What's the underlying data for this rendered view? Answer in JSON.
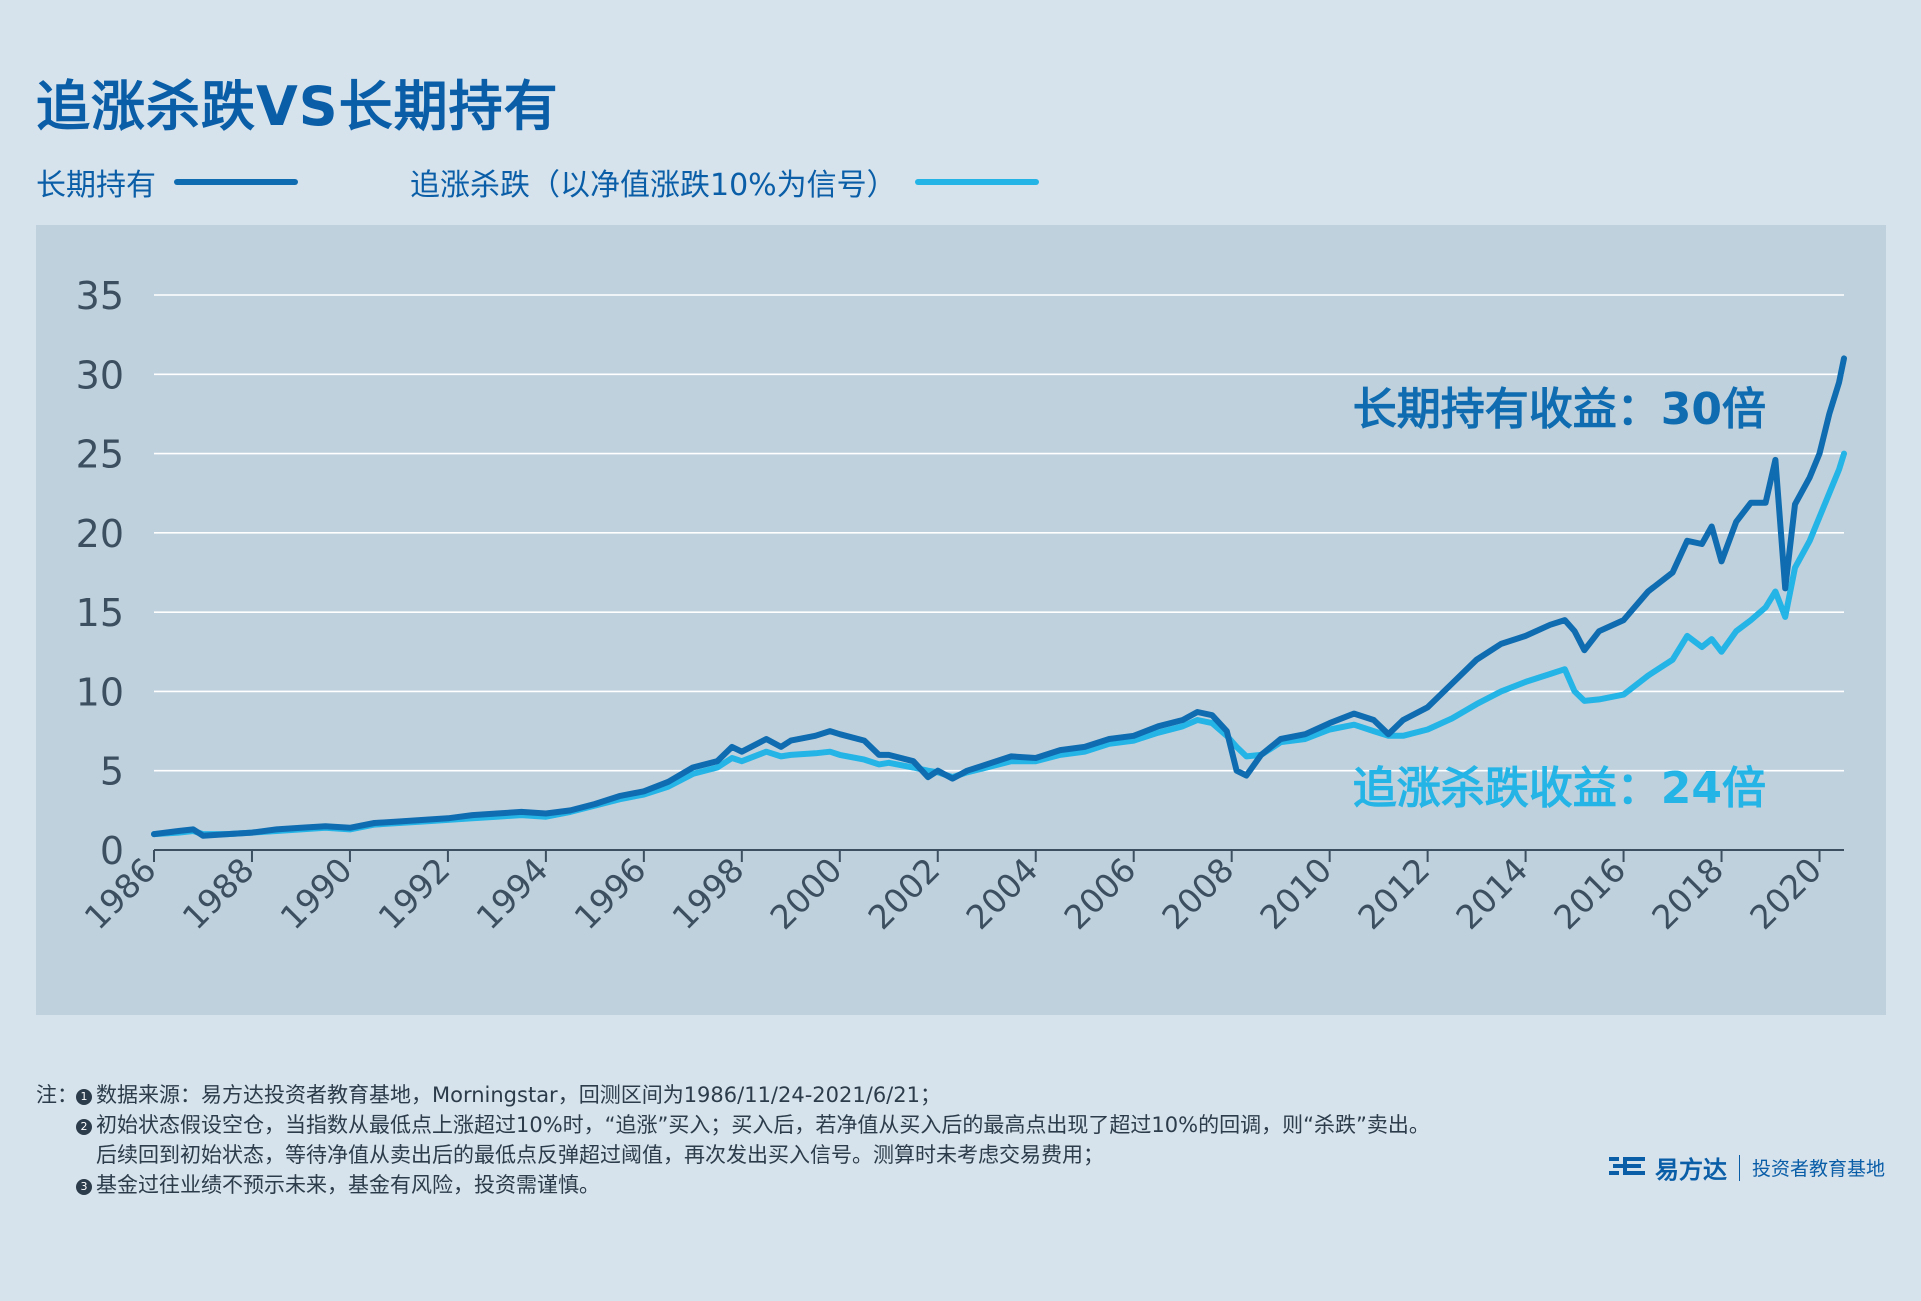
{
  "title": "追涨杀跌VS长期持有",
  "legend": {
    "hold_label": "长期持有",
    "chase_label": "追涨杀跌（以净值涨跌10%为信号）"
  },
  "colors": {
    "hold": "#0f6cb0",
    "chase": "#24b4e6",
    "title": "#0a5ea8",
    "grid": "#ffffff",
    "panel": "#bfd1dd"
  },
  "chart_data": {
    "type": "line",
    "x_ticks": [
      "1986",
      "1988",
      "1990",
      "1992",
      "1994",
      "1996",
      "1998",
      "2000",
      "2002",
      "2004",
      "2006",
      "2008",
      "2010",
      "2012",
      "2014",
      "2016",
      "2018",
      "2020"
    ],
    "y_ticks": [
      "0",
      "5",
      "10",
      "15",
      "20",
      "25",
      "30",
      "35"
    ],
    "xlim": [
      1986,
      2020.5
    ],
    "ylim": [
      0,
      35
    ],
    "grid": "horizontal",
    "series": [
      {
        "name": "长期持有",
        "color": "#0f6cb0",
        "points": [
          [
            1986.0,
            1.0
          ],
          [
            1986.5,
            1.2
          ],
          [
            1986.8,
            1.3
          ],
          [
            1987.0,
            0.9
          ],
          [
            1987.5,
            1.0
          ],
          [
            1988.0,
            1.1
          ],
          [
            1988.5,
            1.3
          ],
          [
            1989.0,
            1.4
          ],
          [
            1989.5,
            1.5
          ],
          [
            1990.0,
            1.4
          ],
          [
            1990.5,
            1.7
          ],
          [
            1991.0,
            1.8
          ],
          [
            1991.5,
            1.9
          ],
          [
            1992.0,
            2.0
          ],
          [
            1992.5,
            2.2
          ],
          [
            1993.0,
            2.3
          ],
          [
            1993.5,
            2.4
          ],
          [
            1994.0,
            2.3
          ],
          [
            1994.5,
            2.5
          ],
          [
            1995.0,
            2.9
          ],
          [
            1995.5,
            3.4
          ],
          [
            1996.0,
            3.7
          ],
          [
            1996.5,
            4.3
          ],
          [
            1997.0,
            5.2
          ],
          [
            1997.5,
            5.6
          ],
          [
            1997.8,
            6.5
          ],
          [
            1998.0,
            6.2
          ],
          [
            1998.5,
            7.0
          ],
          [
            1998.8,
            6.5
          ],
          [
            1999.0,
            6.9
          ],
          [
            1999.5,
            7.2
          ],
          [
            1999.8,
            7.5
          ],
          [
            2000.0,
            7.3
          ],
          [
            2000.5,
            6.9
          ],
          [
            2000.8,
            6.0
          ],
          [
            2001.0,
            6.0
          ],
          [
            2001.5,
            5.6
          ],
          [
            2001.8,
            4.6
          ],
          [
            2002.0,
            5.0
          ],
          [
            2002.3,
            4.5
          ],
          [
            2002.6,
            5.0
          ],
          [
            2003.0,
            5.4
          ],
          [
            2003.5,
            5.9
          ],
          [
            2004.0,
            5.8
          ],
          [
            2004.5,
            6.3
          ],
          [
            2005.0,
            6.5
          ],
          [
            2005.5,
            7.0
          ],
          [
            2006.0,
            7.2
          ],
          [
            2006.5,
            7.8
          ],
          [
            2007.0,
            8.2
          ],
          [
            2007.3,
            8.7
          ],
          [
            2007.6,
            8.5
          ],
          [
            2007.9,
            7.5
          ],
          [
            2008.1,
            5.0
          ],
          [
            2008.3,
            4.7
          ],
          [
            2008.6,
            6.0
          ],
          [
            2009.0,
            7.0
          ],
          [
            2009.5,
            7.3
          ],
          [
            2010.0,
            8.0
          ],
          [
            2010.5,
            8.6
          ],
          [
            2010.9,
            8.2
          ],
          [
            2011.2,
            7.3
          ],
          [
            2011.5,
            8.2
          ],
          [
            2012.0,
            9.0
          ],
          [
            2012.5,
            10.5
          ],
          [
            2013.0,
            12.0
          ],
          [
            2013.5,
            13.0
          ],
          [
            2014.0,
            13.5
          ],
          [
            2014.5,
            14.2
          ],
          [
            2014.8,
            14.5
          ],
          [
            2015.0,
            13.8
          ],
          [
            2015.2,
            12.6
          ],
          [
            2015.5,
            13.8
          ],
          [
            2016.0,
            14.5
          ],
          [
            2016.5,
            16.3
          ],
          [
            2017.0,
            17.5
          ],
          [
            2017.3,
            19.5
          ],
          [
            2017.6,
            19.3
          ],
          [
            2017.8,
            20.4
          ],
          [
            2018.0,
            18.2
          ],
          [
            2018.3,
            20.7
          ],
          [
            2018.6,
            21.9
          ],
          [
            2018.9,
            21.9
          ],
          [
            2019.1,
            24.6
          ],
          [
            2019.3,
            16.5
          ],
          [
            2019.5,
            21.8
          ],
          [
            2019.8,
            23.5
          ],
          [
            2020.0,
            25.0
          ],
          [
            2020.2,
            27.5
          ],
          [
            2020.4,
            29.5
          ],
          [
            2020.5,
            31.0
          ]
        ]
      },
      {
        "name": "追涨杀跌（以净值涨跌10%为信号）",
        "color": "#24b4e6",
        "points": [
          [
            1986.0,
            1.0
          ],
          [
            1986.5,
            1.1
          ],
          [
            1986.8,
            1.2
          ],
          [
            1987.0,
            1.0
          ],
          [
            1987.5,
            1.0
          ],
          [
            1988.0,
            1.1
          ],
          [
            1988.5,
            1.2
          ],
          [
            1989.0,
            1.3
          ],
          [
            1989.5,
            1.4
          ],
          [
            1990.0,
            1.3
          ],
          [
            1990.5,
            1.6
          ],
          [
            1991.0,
            1.7
          ],
          [
            1991.5,
            1.8
          ],
          [
            1992.0,
            1.9
          ],
          [
            1992.5,
            2.0
          ],
          [
            1993.0,
            2.1
          ],
          [
            1993.5,
            2.2
          ],
          [
            1994.0,
            2.1
          ],
          [
            1994.5,
            2.4
          ],
          [
            1995.0,
            2.8
          ],
          [
            1995.5,
            3.2
          ],
          [
            1996.0,
            3.5
          ],
          [
            1996.5,
            4.0
          ],
          [
            1997.0,
            4.8
          ],
          [
            1997.5,
            5.2
          ],
          [
            1997.8,
            5.8
          ],
          [
            1998.0,
            5.6
          ],
          [
            1998.5,
            6.2
          ],
          [
            1998.8,
            5.9
          ],
          [
            1999.0,
            6.0
          ],
          [
            1999.5,
            6.1
          ],
          [
            1999.8,
            6.2
          ],
          [
            2000.0,
            6.0
          ],
          [
            2000.5,
            5.7
          ],
          [
            2000.8,
            5.4
          ],
          [
            2001.0,
            5.5
          ],
          [
            2001.5,
            5.2
          ],
          [
            2001.8,
            5.0
          ],
          [
            2002.0,
            4.9
          ],
          [
            2002.3,
            4.6
          ],
          [
            2002.6,
            4.9
          ],
          [
            2003.0,
            5.2
          ],
          [
            2003.5,
            5.6
          ],
          [
            2004.0,
            5.6
          ],
          [
            2004.5,
            6.0
          ],
          [
            2005.0,
            6.2
          ],
          [
            2005.5,
            6.7
          ],
          [
            2006.0,
            6.9
          ],
          [
            2006.5,
            7.4
          ],
          [
            2007.0,
            7.8
          ],
          [
            2007.3,
            8.2
          ],
          [
            2007.6,
            8.0
          ],
          [
            2007.9,
            7.2
          ],
          [
            2008.1,
            6.5
          ],
          [
            2008.3,
            5.9
          ],
          [
            2008.6,
            6.0
          ],
          [
            2009.0,
            6.8
          ],
          [
            2009.5,
            7.0
          ],
          [
            2010.0,
            7.6
          ],
          [
            2010.5,
            7.9
          ],
          [
            2010.9,
            7.5
          ],
          [
            2011.2,
            7.2
          ],
          [
            2011.5,
            7.2
          ],
          [
            2012.0,
            7.6
          ],
          [
            2012.5,
            8.3
          ],
          [
            2013.0,
            9.2
          ],
          [
            2013.5,
            10.0
          ],
          [
            2014.0,
            10.6
          ],
          [
            2014.5,
            11.1
          ],
          [
            2014.8,
            11.4
          ],
          [
            2015.0,
            10.0
          ],
          [
            2015.2,
            9.4
          ],
          [
            2015.5,
            9.5
          ],
          [
            2016.0,
            9.8
          ],
          [
            2016.5,
            11.0
          ],
          [
            2017.0,
            12.0
          ],
          [
            2017.3,
            13.5
          ],
          [
            2017.6,
            12.8
          ],
          [
            2017.8,
            13.3
          ],
          [
            2018.0,
            12.5
          ],
          [
            2018.3,
            13.8
          ],
          [
            2018.6,
            14.5
          ],
          [
            2018.9,
            15.3
          ],
          [
            2019.1,
            16.3
          ],
          [
            2019.3,
            14.7
          ],
          [
            2019.5,
            17.8
          ],
          [
            2019.8,
            19.5
          ],
          [
            2020.0,
            21.0
          ],
          [
            2020.2,
            22.5
          ],
          [
            2020.4,
            24.0
          ],
          [
            2020.5,
            25.0
          ]
        ]
      }
    ],
    "annotations": {
      "hold": "长期持有收益：30倍",
      "chase": "追涨杀跌收益：24倍"
    }
  },
  "notes": {
    "lead": "注：",
    "n1_num": "1",
    "n1": "数据来源：易方达投资者教育基地，Morningstar，回测区间为1986/11/24-2021/6/21；",
    "n2_num": "2",
    "n2a": "初始状态假设空仓，当指数从最低点上涨超过10%时，“追涨”买入；买入后，若净值从买入后的最高点出现了超过10%的回调，则“杀跌”卖出。",
    "n2b": "后续回到初始状态，等待净值从卖出后的最低点反弹超过阈值，再次发出买入信号。测算时未考虑交易费用；",
    "n3_num": "3",
    "n3": "基金过往业绩不预示未来，基金有风险，投资需谨慎。"
  },
  "brand": {
    "name": "易方达",
    "sub": "投资者教育基地",
    "logo_icon": "efunds-logo-icon"
  }
}
